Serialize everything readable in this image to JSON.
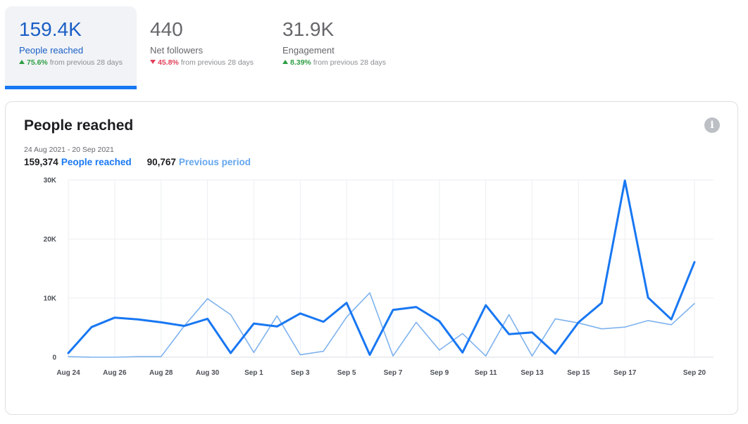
{
  "metrics": [
    {
      "value": "159.4K",
      "label": "People reached",
      "delta": "75.6%",
      "direction": "up",
      "suffix": "from previous 28 days"
    },
    {
      "value": "440",
      "label": "Net followers",
      "delta": "45.8%",
      "direction": "down",
      "suffix": "from previous 28 days"
    },
    {
      "value": "31.9K",
      "label": "Engagement",
      "delta": "8.39%",
      "direction": "up",
      "suffix": "from previous 28 days"
    }
  ],
  "card": {
    "title": "People reached",
    "info_icon": "info-icon",
    "date_range": "24 Aug 2021 - 20 Sep 2021",
    "current_total": "159,374",
    "current_label": "People reached",
    "previous_total": "90,767",
    "previous_label": "Previous period"
  },
  "colors": {
    "current": "#1877f2",
    "previous": "#7fb3ee",
    "up": "#2e9e44",
    "down": "#e0405a"
  },
  "chart_data": {
    "type": "line",
    "title": "People reached",
    "x": [
      "Aug 24",
      "Aug 25",
      "Aug 26",
      "Aug 27",
      "Aug 28",
      "Aug 29",
      "Aug 30",
      "Aug 31",
      "Sep 1",
      "Sep 2",
      "Sep 3",
      "Sep 4",
      "Sep 5",
      "Sep 6",
      "Sep 7",
      "Sep 8",
      "Sep 9",
      "Sep 10",
      "Sep 11",
      "Sep 12",
      "Sep 13",
      "Sep 14",
      "Sep 15",
      "Sep 16",
      "Sep 17",
      "Sep 18",
      "Sep 19",
      "Sep 20"
    ],
    "x_tick_labels": [
      "Aug 24",
      "Aug 26",
      "Aug 28",
      "Aug 30",
      "Sep 1",
      "Sep 3",
      "Sep 5",
      "Sep 7",
      "Sep 9",
      "Sep 11",
      "Sep 13",
      "Sep 15",
      "Sep 17",
      "Sep 20"
    ],
    "y_tick_labels": [
      "0",
      "10K",
      "20K",
      "30K"
    ],
    "ylim": [
      0,
      30000
    ],
    "grid": true,
    "series": [
      {
        "name": "People reached",
        "values": [
          700,
          5100,
          6700,
          6400,
          5900,
          5300,
          6500,
          700,
          5700,
          5200,
          7400,
          6000,
          9200,
          400,
          8000,
          8500,
          6100,
          800,
          8800,
          3900,
          4200,
          600,
          5900,
          9200,
          29900,
          10100,
          6400,
          16100
        ]
      },
      {
        "name": "Previous period",
        "values": [
          100,
          0,
          0,
          100,
          100,
          5300,
          9900,
          7200,
          800,
          7000,
          400,
          1000,
          6800,
          10900,
          200,
          5900,
          1200,
          4000,
          200,
          7200,
          200,
          6500,
          5800,
          4800,
          5100,
          6200,
          5500,
          9100
        ]
      }
    ]
  }
}
